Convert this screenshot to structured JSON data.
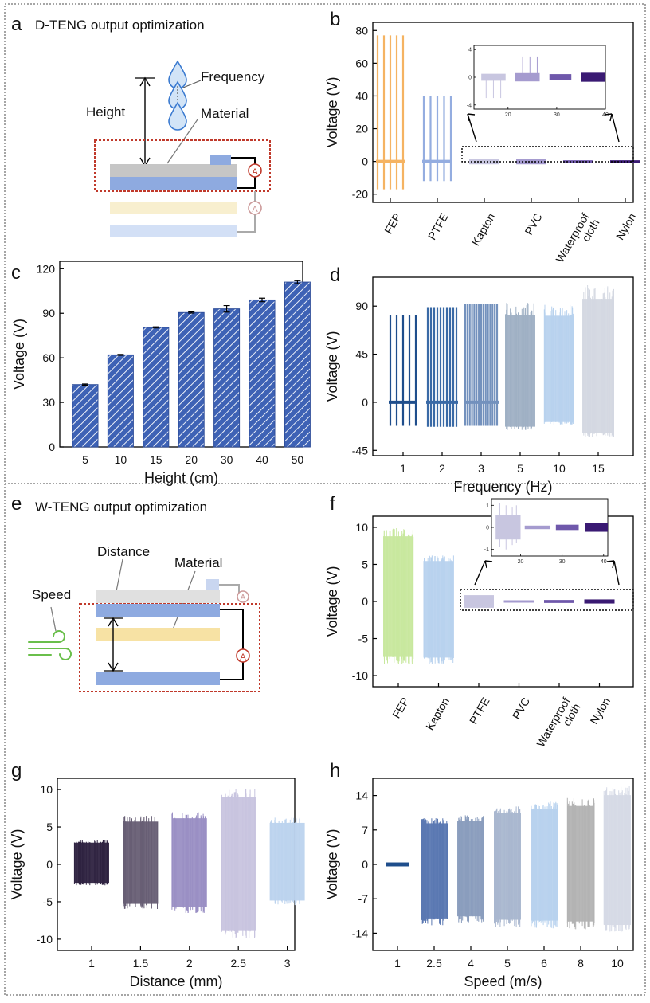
{
  "panels": {
    "a": {
      "letter": "a",
      "title": "D-TENG output optimization",
      "labels": {
        "height": "Height",
        "frequency": "Frequency",
        "material": "Material"
      }
    },
    "b": {
      "letter": "b"
    },
    "c": {
      "letter": "c"
    },
    "d": {
      "letter": "d"
    },
    "e": {
      "letter": "e",
      "title": "W-TENG output optimization",
      "labels": {
        "distance": "Distance",
        "material": "Material",
        "speed": "Speed"
      }
    },
    "f": {
      "letter": "f"
    },
    "g": {
      "letter": "g"
    },
    "h": {
      "letter": "h"
    }
  },
  "icons": {
    "ammeter": "A",
    "arrows": "double-arrow-icon",
    "wind": "wind-icon",
    "drops": "water-drop-icon"
  },
  "colors": {
    "accent": "#c0392b",
    "bar_blue": "#3e62b5",
    "drop": "#3a7ad0"
  },
  "chart_data": [
    {
      "id": "b",
      "type": "line",
      "ylabel": "Voltage (V)",
      "ylim": [
        -25,
        85
      ],
      "yticks": [
        "-20",
        "0",
        "20",
        "40",
        "60",
        "80"
      ],
      "categories": [
        "FEP",
        "PTFE",
        "Kapton",
        "PVC",
        "Waterproof\ncloth",
        "Nylon"
      ],
      "series": [
        {
          "name": "FEP",
          "max": 77,
          "min": -17,
          "color": "#f5b362"
        },
        {
          "name": "PTFE",
          "max": 40,
          "min": -12,
          "color": "#94ade0"
        },
        {
          "name": "Kapton",
          "max": 0.5,
          "min": -3,
          "color": "#c8c6e0"
        },
        {
          "name": "PVC",
          "max": 3,
          "min": -0.5,
          "color": "#a59bcf"
        },
        {
          "name": "Waterproof cloth",
          "max": 0.5,
          "min": -0.5,
          "color": "#6f58ab"
        },
        {
          "name": "Nylon",
          "max": 0.6,
          "min": -0.6,
          "color": "#3a1a73"
        }
      ],
      "inset": {
        "xlim": [
          13,
          40
        ],
        "xticks": [
          "20",
          "30",
          "40"
        ],
        "ylim": [
          -4.6,
          4.6
        ],
        "yticks": [
          "-4",
          "0",
          "4"
        ]
      }
    },
    {
      "id": "c",
      "type": "bar",
      "xlabel": "Height (cm)",
      "ylabel": "Voltage (V)",
      "ylim": [
        0,
        125
      ],
      "yticks": [
        "0",
        "30",
        "60",
        "90",
        "120"
      ],
      "categories": [
        "5",
        "10",
        "15",
        "20",
        "30",
        "40",
        "50"
      ],
      "values": [
        42,
        62,
        80.5,
        90.5,
        93,
        99,
        111
      ],
      "errors": [
        0.4,
        0.3,
        0.4,
        0.4,
        2.2,
        1.2,
        1.0
      ]
    },
    {
      "id": "d",
      "type": "line",
      "xlabel": "Frequency (Hz)",
      "ylabel": "Voltage (V)",
      "ylim": [
        -50,
        117
      ],
      "yticks": [
        "-45",
        "0",
        "45",
        "90"
      ],
      "categories": [
        "1",
        "2",
        "3",
        "5",
        "10",
        "15"
      ],
      "series": [
        {
          "name": "1 Hz",
          "max": 82,
          "min": -22,
          "color": "#1f4e8c"
        },
        {
          "name": "2 Hz",
          "max": 89,
          "min": -23,
          "color": "#3a6aa6"
        },
        {
          "name": "3 Hz",
          "max": 92,
          "min": -22,
          "color": "#7391bd"
        },
        {
          "name": "5 Hz",
          "max": 93,
          "min": -26,
          "color": "#9fb0c4"
        },
        {
          "name": "10 Hz",
          "max": 92,
          "min": -21,
          "color": "#b8d2ee"
        },
        {
          "name": "15 Hz",
          "max": 110,
          "min": -33,
          "color": "#d4d8e2"
        }
      ]
    },
    {
      "id": "f",
      "type": "line",
      "ylabel": "Voltage (V)",
      "ylim": [
        -11.5,
        11.5
      ],
      "yticks": [
        "-10",
        "-5",
        "0",
        "5",
        "10"
      ],
      "categories": [
        "FEP",
        "Kapton",
        "PTFE",
        "PVC",
        "Waterproof\ncloth",
        "Nylon"
      ],
      "series": [
        {
          "name": "FEP",
          "max": 10,
          "min": -8.5,
          "color": "#c8e89e"
        },
        {
          "name": "Kapton",
          "max": 6.2,
          "min": -8.6,
          "color": "#b8d2ee"
        },
        {
          "name": "PTFE",
          "max": 0.8,
          "min": -0.9,
          "color": "#c8c6e0"
        },
        {
          "name": "PVC",
          "max": 0.15,
          "min": -0.15,
          "color": "#a59bcf"
        },
        {
          "name": "Waterproof cloth",
          "max": 0.3,
          "min": -0.1,
          "color": "#6f58ab"
        },
        {
          "name": "Nylon",
          "max": 0.35,
          "min": -0.2,
          "color": "#3a1a73"
        }
      ],
      "inset": {
        "xlim": [
          13,
          41
        ],
        "xticks": [
          "20",
          "30",
          "40"
        ],
        "ylim": [
          -1.3,
          1.3
        ],
        "yticks": [
          "-1",
          "0",
          "1"
        ]
      }
    },
    {
      "id": "g",
      "type": "line",
      "xlabel": "Distance (mm)",
      "ylabel": "Voltage (V)",
      "ylim": [
        -11.5,
        11.5
      ],
      "yticks": [
        "-10",
        "-5",
        "0",
        "5",
        "10"
      ],
      "categories": [
        "1",
        "1.5",
        "2",
        "2.5",
        "3"
      ],
      "series": [
        {
          "name": "1 mm",
          "max": 3.3,
          "min": -2.8,
          "color": "#2e2240"
        },
        {
          "name": "1.5 mm",
          "max": 6.5,
          "min": -6.0,
          "color": "#675e74"
        },
        {
          "name": "2 mm",
          "max": 7.0,
          "min": -6.5,
          "color": "#9a8fc4"
        },
        {
          "name": "2.5 mm",
          "max": 10.2,
          "min": -10.0,
          "color": "#c8c4df"
        },
        {
          "name": "3 mm",
          "max": 6.3,
          "min": -5.5,
          "color": "#bcd3ee"
        }
      ]
    },
    {
      "id": "h",
      "type": "line",
      "xlabel": "Speed (m/s)",
      "ylabel": "Voltage (V)",
      "ylim": [
        -17.5,
        17.5
      ],
      "yticks": [
        "-14",
        "-7",
        "0",
        "7",
        "14"
      ],
      "categories": [
        "1",
        "2.5",
        "4",
        "5",
        "6",
        "8",
        "10"
      ],
      "series": [
        {
          "name": "1 m/s",
          "max": 0.4,
          "min": -0.4,
          "color": "#1f4e8c"
        },
        {
          "name": "2.5 m/s",
          "max": 9.5,
          "min": -12.5,
          "color": "#5a78b2"
        },
        {
          "name": "4 m/s",
          "max": 10.0,
          "min": -12.0,
          "color": "#8a9dbd"
        },
        {
          "name": "5 m/s",
          "max": 11.8,
          "min": -12.8,
          "color": "#a9b7cf"
        },
        {
          "name": "6 m/s",
          "max": 12.8,
          "min": -13.0,
          "color": "#b8d2ee"
        },
        {
          "name": "8 m/s",
          "max": 13.5,
          "min": -13.2,
          "color": "#b3b3b3"
        },
        {
          "name": "10 m/s",
          "max": 16.0,
          "min": -14.0,
          "color": "#d6dae6"
        }
      ]
    }
  ]
}
